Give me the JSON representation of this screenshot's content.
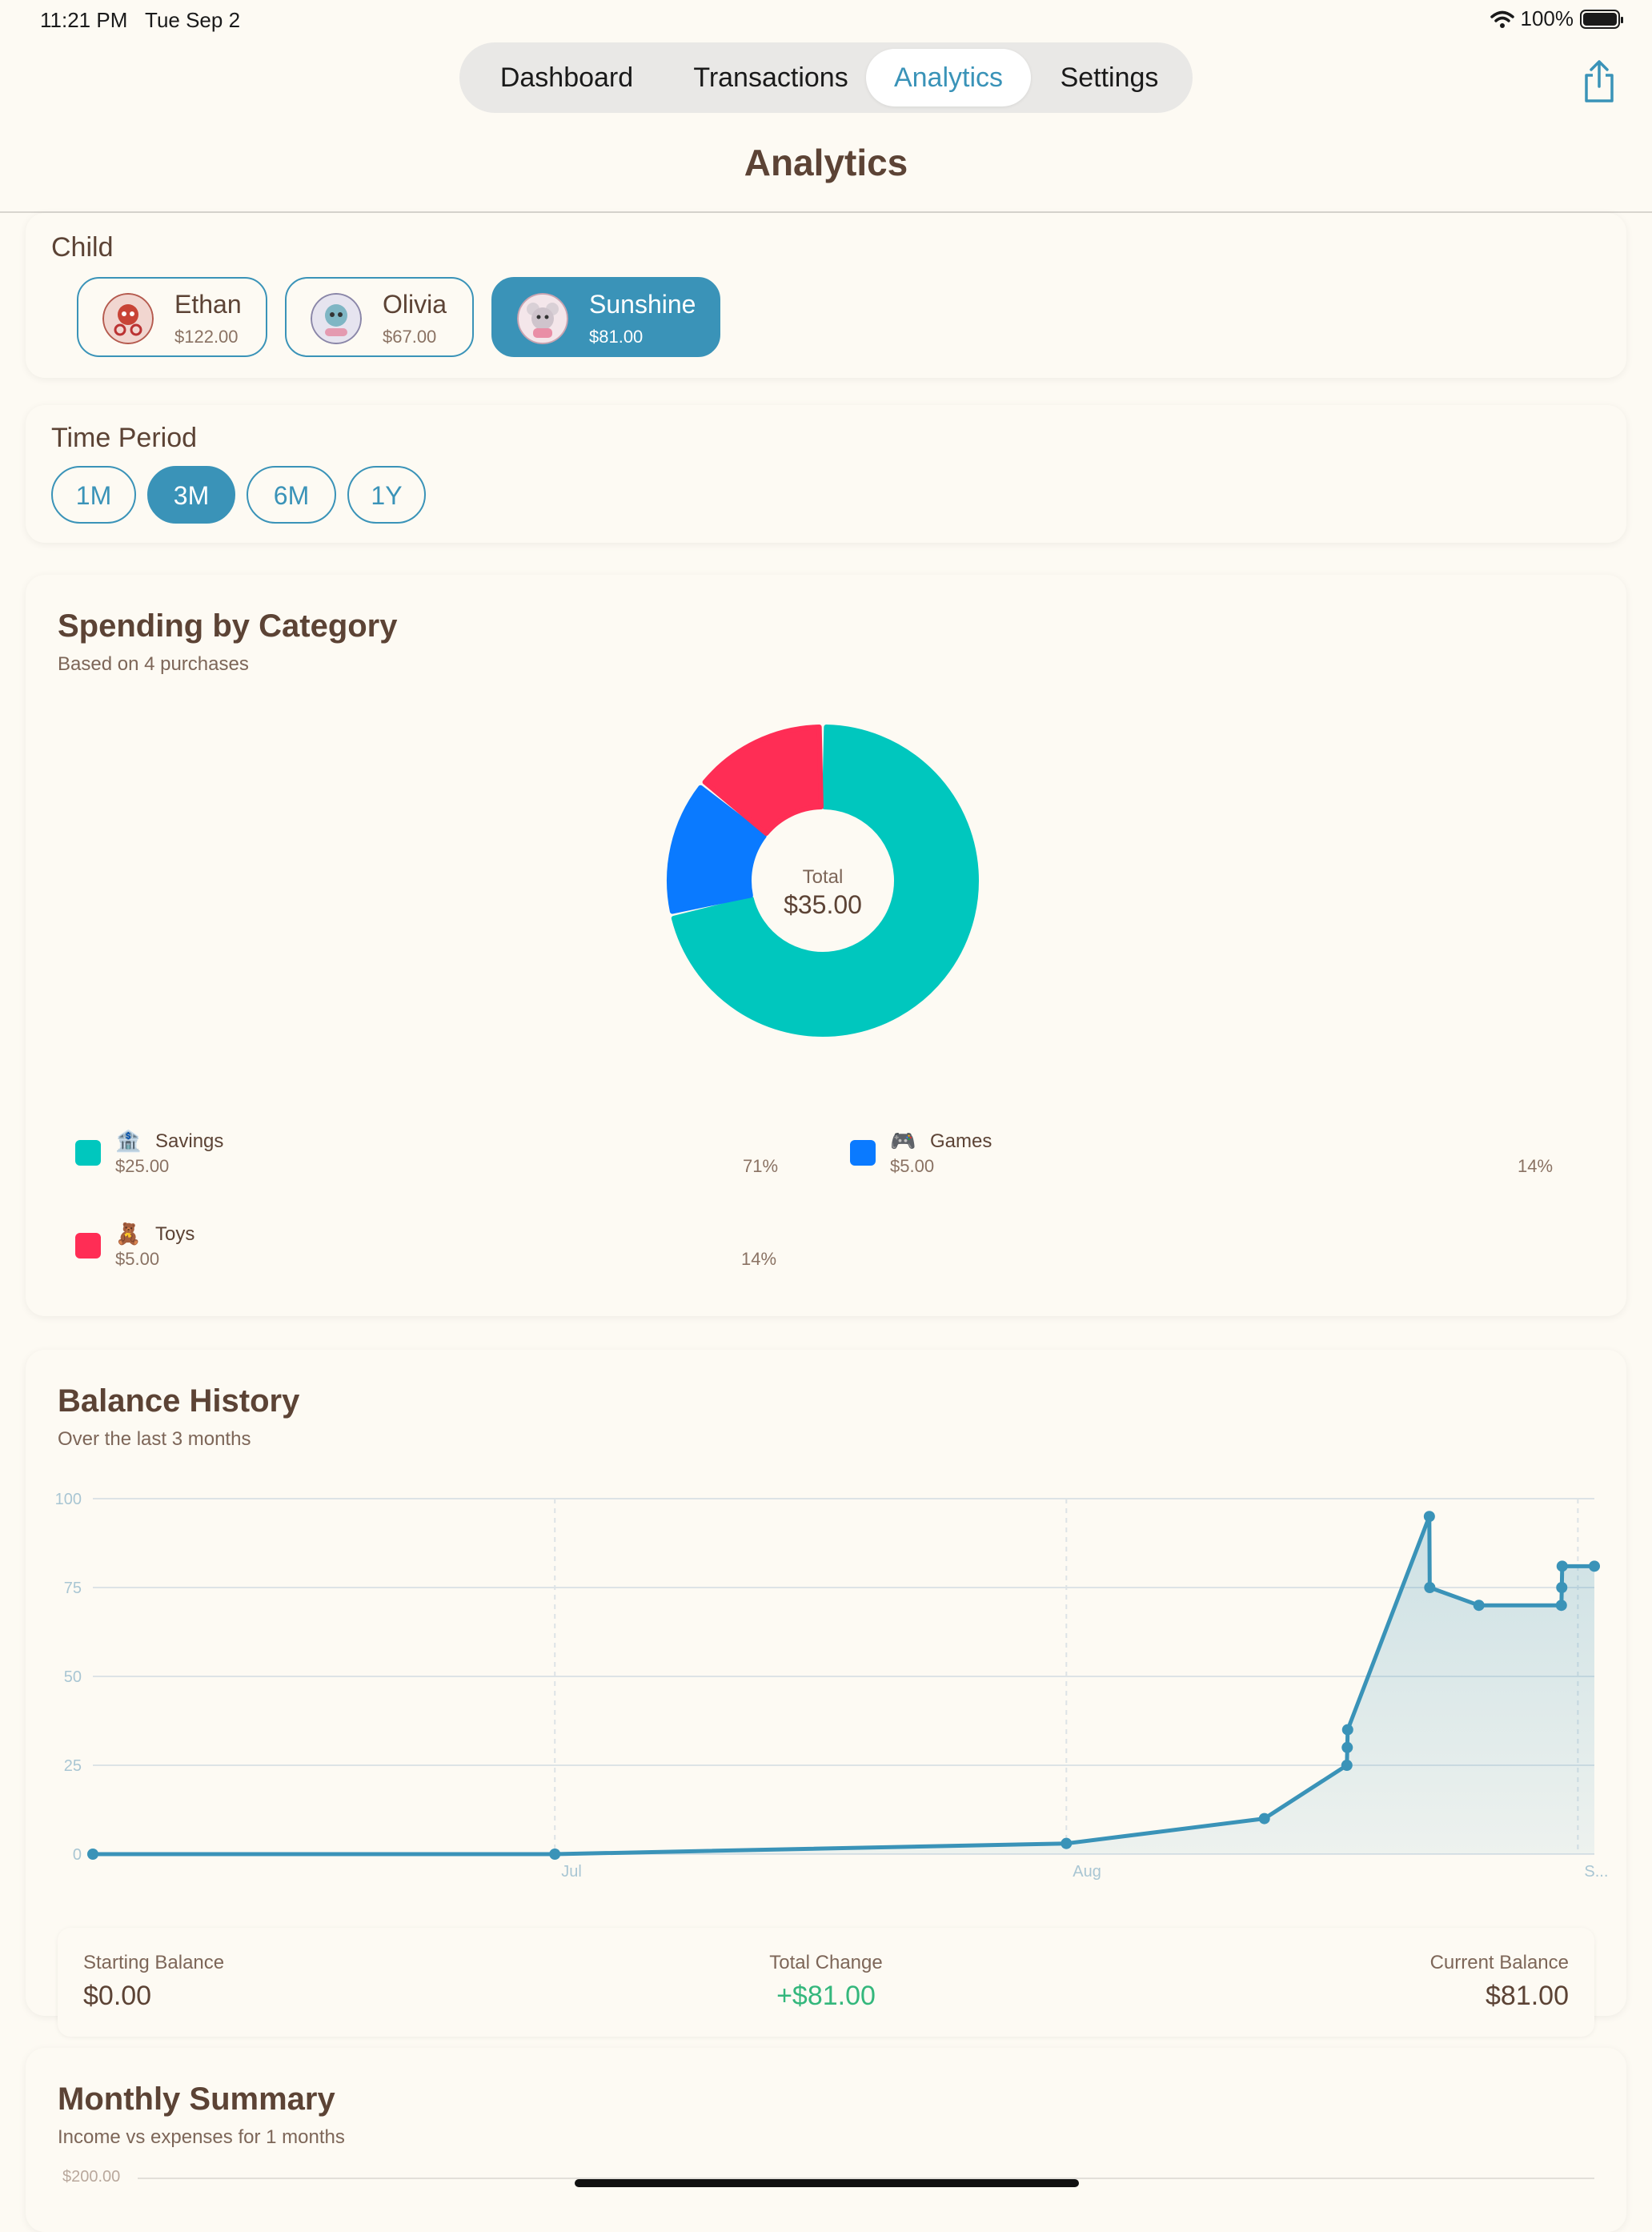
{
  "status": {
    "time": "11:21 PM",
    "date": "Tue Sep 2",
    "battery": "100%"
  },
  "tabs": [
    {
      "label": "Dashboard"
    },
    {
      "label": "Transactions"
    },
    {
      "label": "Analytics",
      "active": true
    },
    {
      "label": "Settings"
    }
  ],
  "page_title": "Analytics",
  "child_section": {
    "label": "Child",
    "children": [
      {
        "name": "Ethan",
        "balance": "$122.00"
      },
      {
        "name": "Olivia",
        "balance": "$67.00"
      },
      {
        "name": "Sunshine",
        "balance": "$81.00",
        "selected": true
      }
    ]
  },
  "period_section": {
    "label": "Time Period",
    "options": [
      "1M",
      "3M",
      "6M",
      "1Y"
    ],
    "selected": "3M"
  },
  "spending": {
    "title": "Spending by Category",
    "subtitle": "Based on 4 purchases",
    "total_label": "Total",
    "total_value": "$35.00",
    "legend": [
      {
        "emoji": "🏦",
        "name": "Savings",
        "amount": "$25.00",
        "pct": "71%",
        "color": "#00c7be"
      },
      {
        "emoji": "🎮",
        "name": "Games",
        "amount": "$5.00",
        "pct": "14%",
        "color": "#0a7aff"
      },
      {
        "emoji": "🧸",
        "name": "Toys",
        "amount": "$5.00",
        "pct": "14%",
        "color": "#ff2d55"
      }
    ]
  },
  "balance": {
    "title": "Balance History",
    "subtitle": "Over the last 3 months",
    "starting_label": "Starting Balance",
    "starting_value": "$0.00",
    "change_label": "Total Change",
    "change_value": "+$81.00",
    "current_label": "Current Balance",
    "current_value": "$81.00"
  },
  "monthly": {
    "title": "Monthly Summary",
    "subtitle": "Income vs expenses for 1 months",
    "y_top_label": "$200.00"
  },
  "chart_data": [
    {
      "type": "pie",
      "title": "Spending by Category",
      "categories": [
        "Savings",
        "Games",
        "Toys"
      ],
      "values": [
        25,
        5,
        5
      ]
    },
    {
      "type": "area",
      "title": "Balance History",
      "x_tick_labels": [
        "Jul",
        "Aug",
        "S..."
      ],
      "ylim": [
        0,
        100
      ],
      "y_ticks": [
        0,
        25,
        50,
        75,
        100
      ],
      "grid": true,
      "x": [
        "Jun 3",
        "Jul 1",
        "Aug 1",
        "Aug 13",
        "Aug 18",
        "Aug 18",
        "Aug 18",
        "Aug 23",
        "Aug 23",
        "Aug 26",
        "Aug 31",
        "Aug 31",
        "Aug 31",
        "Sep 2"
      ],
      "values": [
        0,
        0,
        3,
        10,
        25,
        30,
        35,
        95,
        75,
        70,
        70,
        75,
        81,
        81
      ],
      "color": "#3a93b8"
    }
  ]
}
